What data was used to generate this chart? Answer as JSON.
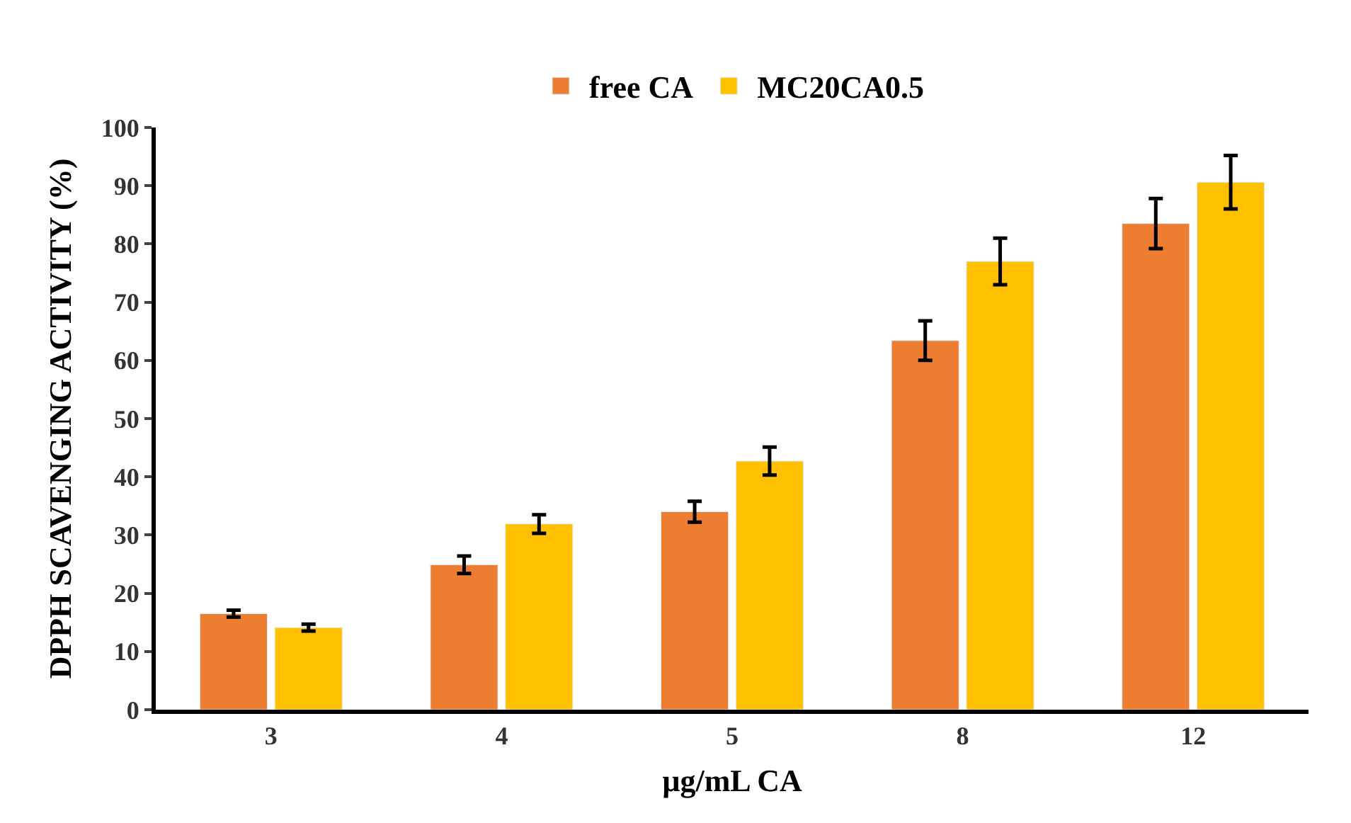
{
  "chart_data": {
    "type": "bar",
    "xlabel": "µg/mL CA",
    "ylabel": "DPPH SCAVENGING ACTIVITY (%)",
    "categories": [
      "3",
      "4",
      "5",
      "8",
      "12"
    ],
    "series": [
      {
        "name": "free CA",
        "color": "#ed7d31",
        "values": [
          16.5,
          24.9,
          34.0,
          63.4,
          83.5
        ],
        "errors": [
          0.6,
          1.5,
          1.8,
          3.4,
          4.3
        ]
      },
      {
        "name": "MC20CA0.5",
        "color": "#ffc000",
        "values": [
          14.1,
          31.9,
          42.7,
          77.0,
          90.6
        ],
        "errors": [
          0.6,
          1.6,
          2.4,
          4.0,
          4.6
        ]
      }
    ],
    "ylim": [
      0,
      100
    ],
    "yticks": [
      0,
      10,
      20,
      30,
      40,
      50,
      60,
      70,
      80,
      90,
      100
    ],
    "legend": "top"
  }
}
